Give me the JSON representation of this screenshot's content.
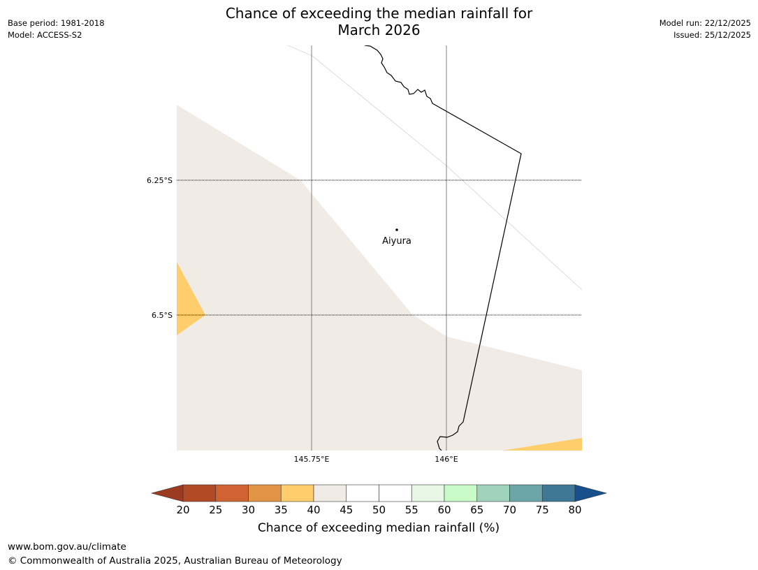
{
  "title": {
    "line1": "Chance of exceeding the median rainfall for",
    "line2": "March 2026"
  },
  "info_left": {
    "base_period": "Base period: 1981-2018",
    "model": "Model: ACCESS-S2"
  },
  "info_right": {
    "model_run": "Model run: 22/12/2025",
    "issued": "Issued: 25/12/2025"
  },
  "map": {
    "place_label": "Aiyura",
    "lon_labels": [
      "145.75°E",
      "146°E"
    ],
    "lat_labels": [
      "6.25°S",
      "6.5°S"
    ]
  },
  "legend": {
    "title": "Chance of exceeding median rainfall (%)",
    "ticks": [
      "20",
      "25",
      "30",
      "35",
      "40",
      "45",
      "50",
      "55",
      "60",
      "65",
      "70",
      "75",
      "80"
    ],
    "colors": [
      "#9b3b22",
      "#b24a26",
      "#cf6432",
      "#e19446",
      "#ffcd6b",
      "#f0ebe5",
      "#ffffff",
      "#ffffff",
      "#e8f6e6",
      "#c8fbc8",
      "#9fd1bb",
      "#6da6a8",
      "#3f7897",
      "#164f8b"
    ]
  },
  "footer": {
    "url": "www.bom.gov.au/climate",
    "copyright": "© Commonwealth of Australia 2025, Australian Bureau of Meteorology"
  }
}
